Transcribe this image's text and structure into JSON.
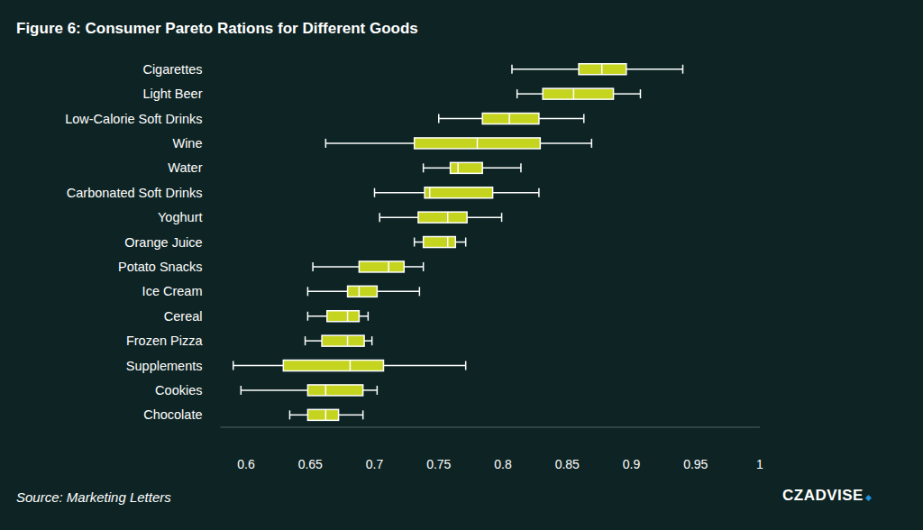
{
  "chart_data": {
    "type": "box",
    "title": "Figure 6: Consumer Pareto Rations for Different Goods",
    "source": "Source: Marketing Letters",
    "logo": "CZADVISE",
    "orientation": "horizontal",
    "categories": [
      "Cigarettes",
      "Light Beer",
      "Low-Calorie Soft Drinks",
      "Wine",
      "Water",
      "Carbonated Soft Drinks",
      "Yoghurt",
      "Orange Juice",
      "Potato Snacks",
      "Ice Cream",
      "Cereal",
      "Frozen Pizza",
      "Supplements",
      "Cookies",
      "Chocolate"
    ],
    "min": [
      0.807,
      0.811,
      0.75,
      0.662,
      0.738,
      0.7,
      0.704,
      0.731,
      0.652,
      0.648,
      0.648,
      0.646,
      0.59,
      0.596,
      0.634
    ],
    "q1": [
      0.859,
      0.831,
      0.784,
      0.731,
      0.759,
      0.739,
      0.734,
      0.738,
      0.688,
      0.679,
      0.663,
      0.659,
      0.629,
      0.648,
      0.648
    ],
    "median": [
      0.877,
      0.855,
      0.805,
      0.78,
      0.765,
      0.743,
      0.757,
      0.757,
      0.711,
      0.688,
      0.679,
      0.679,
      0.681,
      0.662,
      0.662
    ],
    "q3": [
      0.896,
      0.886,
      0.828,
      0.829,
      0.784,
      0.792,
      0.772,
      0.763,
      0.723,
      0.702,
      0.688,
      0.692,
      0.707,
      0.691,
      0.672
    ],
    "max": [
      0.94,
      0.907,
      0.863,
      0.869,
      0.814,
      0.828,
      0.799,
      0.771,
      0.738,
      0.735,
      0.695,
      0.698,
      0.771,
      0.702,
      0.691
    ],
    "color": "#c5d41f",
    "xlim": [
      0.58,
      1.0
    ],
    "xticks": [
      0.6,
      0.65,
      0.7,
      0.75,
      0.8,
      0.85,
      0.9,
      0.95,
      1
    ],
    "grid": false
  }
}
